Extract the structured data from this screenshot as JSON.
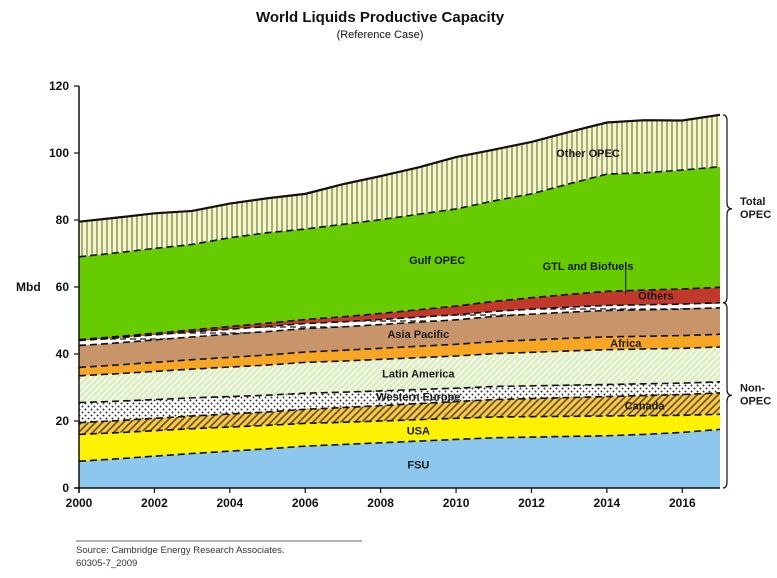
{
  "chart_data": {
    "type": "area",
    "stacked": true,
    "title": "World Liquids Productive Capacity",
    "subtitle": "(Reference Case)",
    "ylabel": "Mbd",
    "xlabel": "",
    "ylim": [
      0,
      120
    ],
    "xlim": [
      2000,
      2017
    ],
    "yticks": [
      "0",
      "20",
      "40",
      "60",
      "80",
      "100",
      "120"
    ],
    "xticks": [
      "2000",
      "2002",
      "2004",
      "2006",
      "2008",
      "2010",
      "2012",
      "2014",
      "2016"
    ],
    "x": [
      2000,
      2001,
      2002,
      2003,
      2004,
      2005,
      2006,
      2007,
      2008,
      2009,
      2010,
      2011,
      2012,
      2013,
      2014,
      2015,
      2016,
      2017
    ],
    "series": [
      {
        "name": "FSU",
        "color": "#8ec7ee",
        "pattern": "solid",
        "values": [
          8.0,
          8.7,
          9.5,
          10.3,
          11.0,
          11.7,
          12.5,
          13.0,
          13.5,
          14.0,
          14.5,
          15.0,
          15.2,
          15.4,
          15.6,
          16.0,
          16.6,
          17.5
        ]
      },
      {
        "name": "USA",
        "color": "#fff200",
        "pattern": "solid",
        "values": [
          8.0,
          7.8,
          7.6,
          7.4,
          7.2,
          7.0,
          6.8,
          6.6,
          6.5,
          6.4,
          6.3,
          6.2,
          6.1,
          6.0,
          5.9,
          5.6,
          5.1,
          4.5
        ]
      },
      {
        "name": "Canada",
        "color": "#f2c94c",
        "pattern": "diagonal",
        "values": [
          3.5,
          3.6,
          3.7,
          3.8,
          3.9,
          4.0,
          4.2,
          4.4,
          4.6,
          4.8,
          5.0,
          5.2,
          5.4,
          5.6,
          5.8,
          6.0,
          6.2,
          6.4
        ]
      },
      {
        "name": "Western Europe",
        "color": "#ffffff",
        "pattern": "dots",
        "values": [
          6.0,
          5.8,
          5.6,
          5.4,
          5.2,
          5.0,
          4.8,
          4.6,
          4.4,
          4.2,
          4.0,
          3.9,
          3.8,
          3.7,
          3.6,
          3.5,
          3.4,
          3.3
        ]
      },
      {
        "name": "Latin America",
        "color": "#dceec0",
        "pattern": "diagonal-light",
        "values": [
          8.0,
          8.2,
          8.4,
          8.6,
          8.8,
          9.0,
          9.2,
          9.3,
          9.4,
          9.5,
          9.6,
          9.8,
          10.0,
          10.2,
          10.4,
          10.4,
          10.4,
          10.4
        ]
      },
      {
        "name": "Africa",
        "color": "#f6a623",
        "pattern": "solid",
        "values": [
          2.5,
          2.6,
          2.7,
          2.8,
          2.9,
          3.0,
          3.1,
          3.2,
          3.3,
          3.4,
          3.5,
          3.6,
          3.7,
          3.8,
          3.8,
          3.8,
          3.8,
          3.8
        ]
      },
      {
        "name": "Asia Pacific",
        "color": "#c8956a",
        "pattern": "solid",
        "values": [
          6.5,
          6.6,
          6.7,
          6.8,
          6.9,
          7.0,
          7.0,
          7.0,
          7.1,
          7.2,
          7.3,
          7.5,
          7.7,
          7.8,
          7.9,
          7.9,
          7.9,
          7.9
        ]
      },
      {
        "name": "Others",
        "color": "#ffffff",
        "pattern": "dashes",
        "values": [
          1.5,
          1.5,
          1.5,
          1.5,
          1.5,
          1.5,
          1.5,
          1.5,
          1.5,
          1.5,
          1.5,
          1.5,
          1.5,
          1.5,
          1.5,
          1.5,
          1.5,
          1.5
        ]
      },
      {
        "name": "GTL and Biofuels",
        "color": "#c0392b",
        "pattern": "solid",
        "values": [
          0.3,
          0.4,
          0.5,
          0.6,
          0.8,
          1.0,
          1.2,
          1.5,
          1.8,
          2.2,
          2.6,
          3.0,
          3.4,
          3.8,
          4.2,
          4.4,
          4.5,
          4.6
        ]
      },
      {
        "name": "Gulf OPEC",
        "color": "#66cc00",
        "pattern": "solid",
        "values": [
          24.7,
          25.0,
          25.3,
          25.5,
          26.5,
          27.0,
          27.0,
          27.6,
          28.0,
          28.5,
          29.0,
          30.0,
          31.0,
          33.0,
          35.0,
          35.0,
          35.5,
          36.0
        ]
      },
      {
        "name": "Other OPEC",
        "color": "#f4f8c4",
        "pattern": "vertical",
        "values": [
          10.5,
          10.5,
          10.5,
          10.0,
          10.2,
          10.3,
          10.5,
          12.0,
          13.0,
          14.0,
          15.5,
          15.3,
          15.5,
          15.5,
          15.4,
          15.7,
          14.8,
          15.5
        ]
      }
    ],
    "annotations": [
      {
        "text": "Total OPEC",
        "lines": [
          "Total",
          "OPEC"
        ]
      },
      {
        "text": "Non-OPEC",
        "lines": [
          "Non-",
          "OPEC"
        ]
      }
    ],
    "source": "Source: Cambridge Energy Research Associates.",
    "code": "60305-7_2009"
  }
}
